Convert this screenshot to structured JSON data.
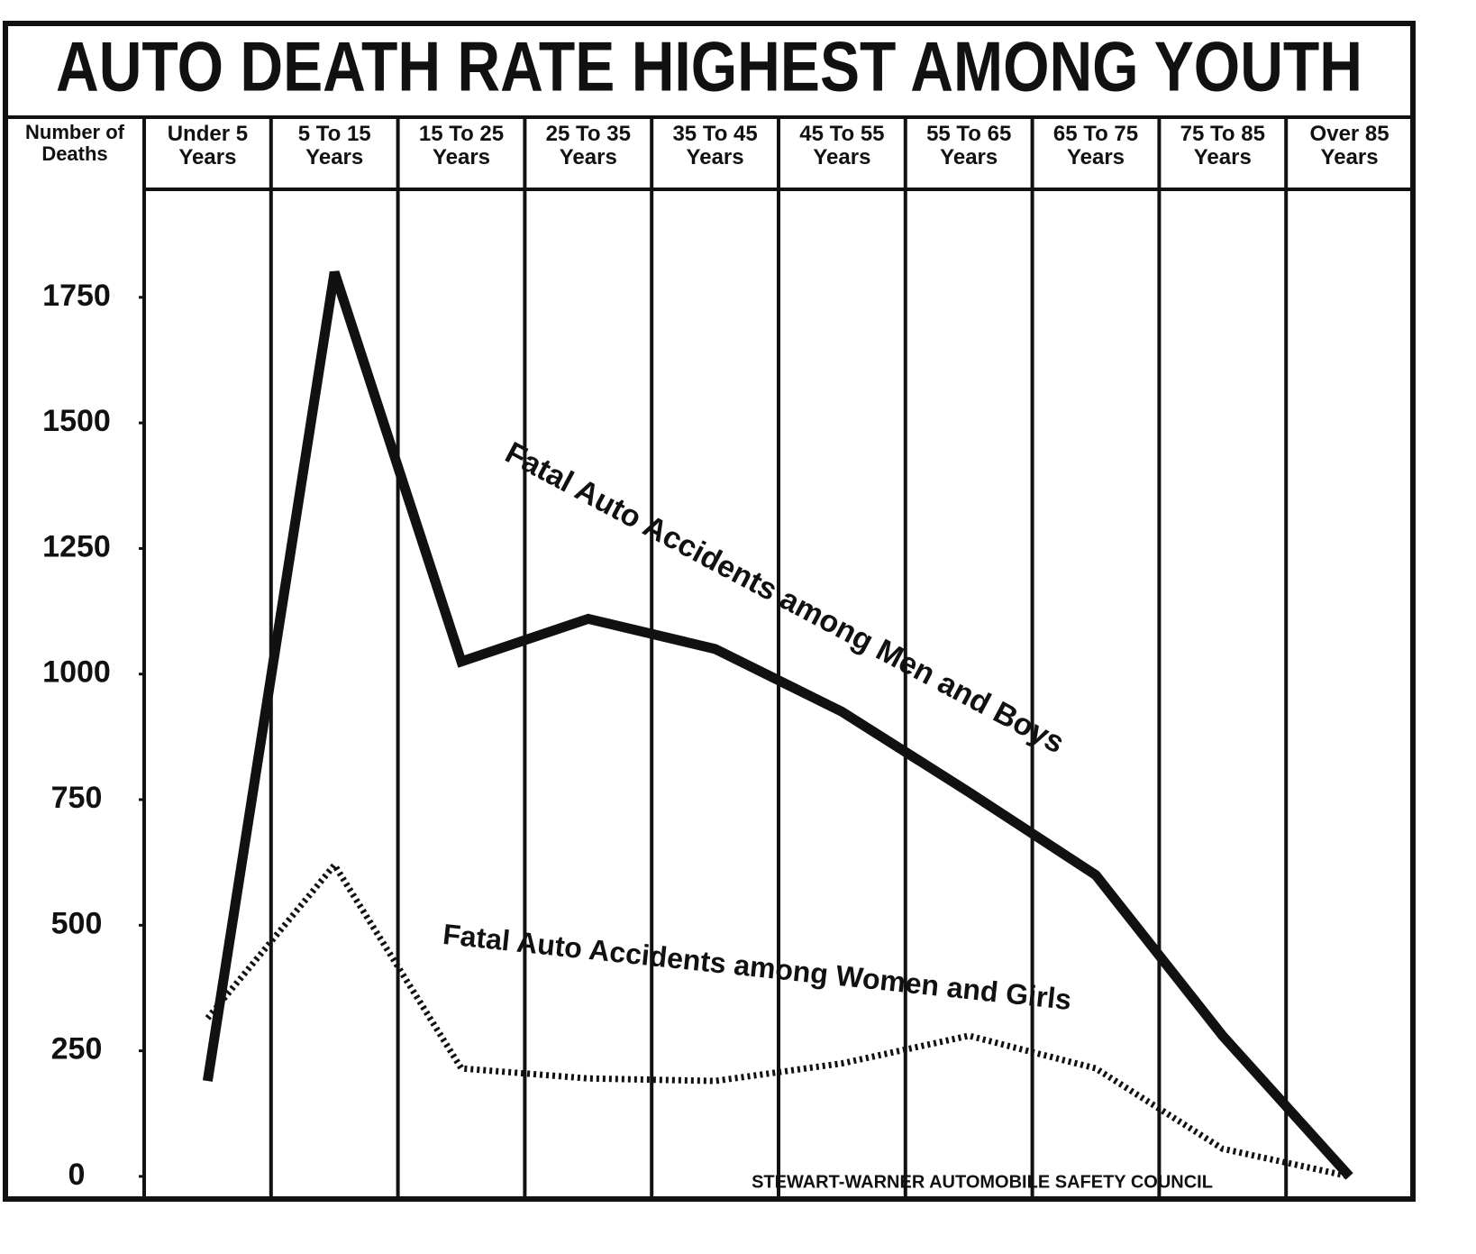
{
  "chart_data": {
    "type": "line",
    "title": "AUTO DEATH RATE HIGHEST AMONG YOUTH",
    "y_label": "Number of Deaths",
    "categories": [
      "Under 5 Years",
      "5 To 15 Years",
      "15 To 25 Years",
      "25 To 35 Years",
      "35 To 45 Years",
      "45 To 55 Years",
      "55 To 65 Years",
      "65 To 75 Years",
      "75 To 85 Years",
      "Over 85 Years"
    ],
    "series": [
      {
        "name": "Fatal Auto Accidents among Men and Boys",
        "color": "#111111",
        "style": "solid",
        "values": [
          190,
          1800,
          1025,
          1110,
          1050,
          925,
          765,
          600,
          280,
          0
        ]
      },
      {
        "name": "Fatal Auto Accidents among Women and Girls",
        "color": "#111111",
        "style": "dotted",
        "values": [
          315,
          620,
          215,
          195,
          190,
          225,
          280,
          215,
          55,
          0
        ]
      }
    ],
    "ylim": [
      -45,
      1965
    ],
    "yticks": [
      0,
      250,
      500,
      750,
      1000,
      1250,
      1500,
      1750
    ],
    "grid": false,
    "footnote": "STEWART-WARNER AUTOMOBILE SAFETY COUNCIL"
  }
}
